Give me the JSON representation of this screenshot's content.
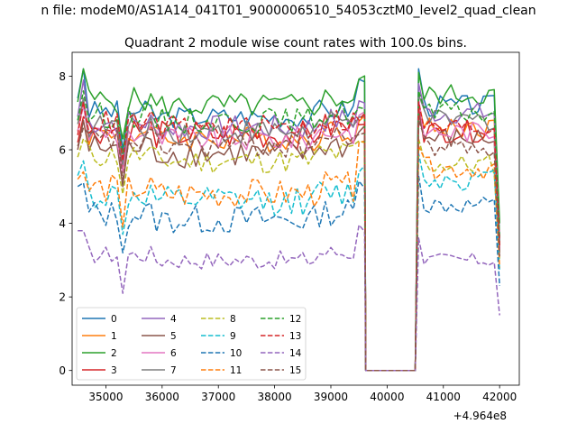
{
  "chart_data": {
    "type": "line",
    "suptitle": "n file: modeM0/AS1A14_041T01_9000006510_54053cztM0_level2_quad_clean",
    "title": "Quadrant 2 module wise count rates with 100.0s bins.",
    "xlabel": "",
    "ylabel": "",
    "x_offset_label": "+4.964e8",
    "xlim": [
      34400,
      42350
    ],
    "ylim": [
      -0.4,
      8.65
    ],
    "xticks": [
      35000,
      36000,
      37000,
      38000,
      39000,
      40000,
      41000,
      42000
    ],
    "xtick_labels": [
      "35000",
      "36000",
      "37000",
      "38000",
      "39000",
      "40000",
      "41000",
      "42000"
    ],
    "yticks": [
      0,
      2,
      4,
      6,
      8
    ],
    "ytick_labels": [
      "0",
      "2",
      "4",
      "6",
      "8"
    ],
    "gap": {
      "start": 39600,
      "end": 40500,
      "value": 0
    },
    "segments": [
      {
        "x_start": 34500,
        "x_end": 39600,
        "n": 52
      },
      {
        "x_start": 40500,
        "x_end": 42000,
        "n": 16
      }
    ],
    "legend_location": "lower-left",
    "series": [
      {
        "name": "0",
        "color": "#1f77b4",
        "style": "solid",
        "seg1": {
          "start": 7.4,
          "end": 7.9,
          "mean": 6.9,
          "first_peak": 8.2,
          "noise": 0.3
        },
        "seg2": {
          "start": 8.2,
          "mean": 7.2,
          "end": 3.5,
          "noise": 0.3
        }
      },
      {
        "name": "1",
        "color": "#ff7f0e",
        "style": "solid",
        "seg1": {
          "start": 6.5,
          "end": 6.9,
          "mean": 6.3,
          "first_peak": 7.3,
          "noise": 0.35
        },
        "seg2": {
          "start": 7.3,
          "mean": 6.6,
          "end": 3.4,
          "noise": 0.3
        }
      },
      {
        "name": "2",
        "color": "#2ca02c",
        "style": "solid",
        "seg1": {
          "start": 7.3,
          "end": 7.9,
          "mean": 7.2,
          "first_peak": 8.2,
          "noise": 0.35
        },
        "seg2": {
          "start": 8.1,
          "mean": 7.5,
          "end": 4.0,
          "noise": 0.3
        }
      },
      {
        "name": "3",
        "color": "#d62728",
        "style": "solid",
        "seg1": {
          "start": 6.2,
          "end": 6.8,
          "mean": 6.4,
          "first_peak": 6.9,
          "noise": 0.4
        },
        "seg2": {
          "start": 7.2,
          "mean": 6.5,
          "end": 3.3,
          "noise": 0.3
        }
      },
      {
        "name": "4",
        "color": "#9467bd",
        "style": "solid",
        "seg1": {
          "start": 6.9,
          "end": 7.3,
          "mean": 6.6,
          "first_peak": 7.9,
          "noise": 0.35
        },
        "seg2": {
          "start": 7.8,
          "mean": 7.0,
          "end": 3.6,
          "noise": 0.3
        }
      },
      {
        "name": "5",
        "color": "#8c564b",
        "style": "solid",
        "seg1": {
          "start": 6.0,
          "end": 6.6,
          "mean": 5.9,
          "first_peak": 6.8,
          "noise": 0.4
        },
        "seg2": {
          "start": 7.0,
          "mean": 6.3,
          "end": 3.2,
          "noise": 0.3
        }
      },
      {
        "name": "6",
        "color": "#e377c2",
        "style": "solid",
        "seg1": {
          "start": 6.5,
          "end": 6.9,
          "mean": 6.3,
          "first_peak": 7.2,
          "noise": 0.35
        },
        "seg2": {
          "start": 7.4,
          "mean": 6.5,
          "end": 3.3,
          "noise": 0.3
        }
      },
      {
        "name": "7",
        "color": "#7f7f7f",
        "style": "solid",
        "seg1": {
          "start": 6.7,
          "end": 7.0,
          "mean": 6.5,
          "first_peak": 7.4,
          "noise": 0.35
        },
        "seg2": {
          "start": 7.5,
          "mean": 6.8,
          "end": 3.4,
          "noise": 0.3
        }
      },
      {
        "name": "8",
        "color": "#bcbd22",
        "style": "dashed",
        "seg1": {
          "start": 5.8,
          "end": 6.2,
          "mean": 5.7,
          "first_peak": 6.3,
          "noise": 0.35
        },
        "seg2": {
          "start": 6.3,
          "mean": 5.6,
          "end": 3.0,
          "noise": 0.3
        }
      },
      {
        "name": "9",
        "color": "#17becf",
        "style": "dashed",
        "seg1": {
          "start": 5.3,
          "end": 5.5,
          "mean": 4.6,
          "first_peak": 5.7,
          "noise": 0.4
        },
        "seg2": {
          "start": 5.9,
          "mean": 5.2,
          "end": 2.7,
          "noise": 0.3
        }
      },
      {
        "name": "10",
        "color": "#1f77b4",
        "style": "dashed",
        "seg1": {
          "start": 5.0,
          "end": 5.1,
          "mean": 4.1,
          "first_peak": 5.1,
          "noise": 0.4
        },
        "seg2": {
          "start": 5.3,
          "mean": 4.5,
          "end": 2.3,
          "noise": 0.25
        }
      },
      {
        "name": "11",
        "color": "#ff7f0e",
        "style": "dashed",
        "seg1": {
          "start": 5.2,
          "end": 6.3,
          "mean": 4.8,
          "first_peak": 5.4,
          "noise": 0.4
        },
        "seg2": {
          "start": 6.1,
          "mean": 5.5,
          "end": 2.8,
          "noise": 0.3
        }
      },
      {
        "name": "12",
        "color": "#2ca02c",
        "style": "dashed",
        "seg1": {
          "start": 6.8,
          "end": 7.1,
          "mean": 6.8,
          "first_peak": 7.6,
          "noise": 0.35
        },
        "seg2": {
          "start": 7.6,
          "mean": 7.0,
          "end": 3.6,
          "noise": 0.3
        }
      },
      {
        "name": "13",
        "color": "#d62728",
        "style": "dashed",
        "seg1": {
          "start": 6.4,
          "end": 6.9,
          "mean": 6.6,
          "first_peak": 7.3,
          "noise": 0.35
        },
        "seg2": {
          "start": 7.3,
          "mean": 6.6,
          "end": 3.4,
          "noise": 0.3
        }
      },
      {
        "name": "14",
        "color": "#9467bd",
        "style": "dashed",
        "seg1": {
          "start": 3.8,
          "end": 3.9,
          "mean": 3.0,
          "first_peak": 3.8,
          "noise": 0.25
        },
        "seg2": {
          "start": 3.6,
          "mean": 3.0,
          "end": 1.5,
          "noise": 0.2
        }
      },
      {
        "name": "15",
        "color": "#8c564b",
        "style": "dashed",
        "seg1": {
          "start": 6.1,
          "end": 6.5,
          "mean": 6.1,
          "first_peak": 6.6,
          "noise": 0.35
        },
        "seg2": {
          "start": 6.8,
          "mean": 6.1,
          "end": 3.1,
          "noise": 0.3
        }
      }
    ]
  }
}
